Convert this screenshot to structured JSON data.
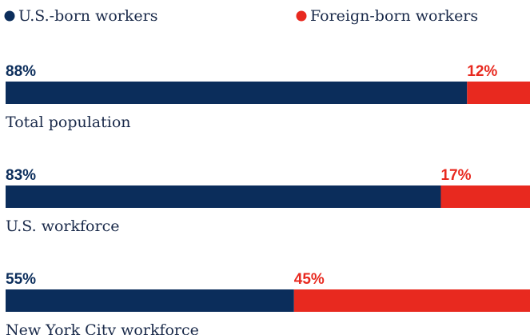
{
  "chart_data": {
    "type": "bar",
    "orientation": "horizontal",
    "stacked": true,
    "categories": [
      "Total population",
      "U.S. workforce",
      "New York City workforce"
    ],
    "xlim": [
      0,
      100
    ],
    "series": [
      {
        "name": "U.S.-born workers",
        "color": "#0b2d5b",
        "values": [
          88,
          83,
          55
        ],
        "value_labels": [
          "88%",
          "83%",
          "55%"
        ]
      },
      {
        "name": "Foreign-born workers",
        "color": "#e8291f",
        "values": [
          12,
          17,
          45
        ],
        "value_labels": [
          "12%",
          "17%",
          "45%"
        ]
      }
    ]
  }
}
